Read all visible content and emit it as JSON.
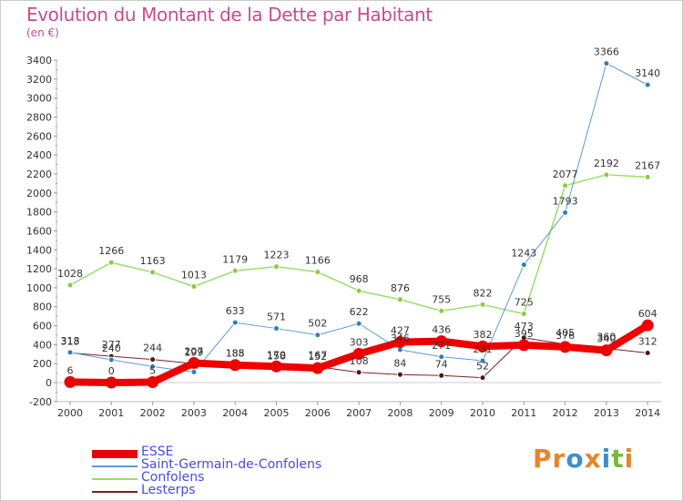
{
  "title": "Evolution du Montant de la Dette par Habitant",
  "subtitle": "(en €)",
  "brand": {
    "text": "Proxiti",
    "letters": [
      {
        "ch": "P",
        "color": "#e8842a"
      },
      {
        "ch": "r",
        "color": "#e8842a"
      },
      {
        "ch": "o",
        "color": "#3a8fd0"
      },
      {
        "ch": "x",
        "color": "#e8842a"
      },
      {
        "ch": "i",
        "color": "#3a8fd0"
      },
      {
        "ch": "t",
        "color": "#7ab83a"
      },
      {
        "ch": "i",
        "color": "#e8842a"
      }
    ]
  },
  "chart_data": {
    "type": "line",
    "title": "Evolution du Montant de la Dette par Habitant",
    "ylabel": "(en €)",
    "xlabel": "",
    "x": [
      "2000",
      "2001",
      "2002",
      "2003",
      "2004",
      "2005",
      "2006",
      "2007",
      "2008",
      "2009",
      "2010",
      "2011",
      "2012",
      "2013",
      "2014"
    ],
    "ylim": [
      -200,
      3400
    ],
    "yticks": [
      -200,
      0,
      200,
      400,
      600,
      800,
      1000,
      1200,
      1400,
      1600,
      1800,
      2000,
      2200,
      2400,
      2600,
      2800,
      3000,
      3200,
      3400
    ],
    "grid": false,
    "legend_position": "bottom-left",
    "series": [
      {
        "name": "ESSE",
        "color": "#ee0000",
        "values": [
          6,
          0,
          5,
          207,
          185,
          170,
          152,
          303,
          427,
          436,
          382,
          395,
          376,
          340,
          604
        ]
      },
      {
        "name": "Saint-Germain-de-Confolens",
        "color": "#5b9bd5",
        "values": [
          318,
          240,
          169,
          111,
          633,
          571,
          502,
          622,
          346,
          271,
          231,
          1243,
          1793,
          3366,
          3140
        ]
      },
      {
        "name": "Confolens",
        "color": "#99dd66",
        "values": [
          1028,
          1266,
          1163,
          1013,
          1179,
          1223,
          1166,
          968,
          876,
          755,
          822,
          725,
          2077,
          2192,
          2167
        ]
      },
      {
        "name": "Lesterps",
        "color": "#772222",
        "values": [
          313,
          277,
          244,
          199,
          188,
          158,
          167,
          108,
          84,
          74,
          52,
          473,
          405,
          360,
          312
        ]
      }
    ],
    "data_labels": {
      "ESSE": [
        "6",
        "0",
        "5",
        "207",
        "185",
        "170",
        "152",
        "303",
        "427",
        "436",
        "382",
        "395",
        "376",
        "340",
        "604"
      ],
      "Saint-Germain-de-Confolens": [
        "318",
        "240",
        "",
        "",
        "633",
        "571",
        "502",
        "622",
        "346",
        "271",
        "231",
        "1243",
        "1793",
        "3366",
        "3140"
      ],
      "Confolens": [
        "1028",
        "1266",
        "1163",
        "1013",
        "1179",
        "1223",
        "1166",
        "968",
        "876",
        "755",
        "822",
        "725",
        "2077",
        "2192",
        "2167"
      ],
      "Lesterps": [
        "313",
        "277",
        "244",
        "199",
        "188",
        "158",
        "167",
        "108",
        "84",
        "74",
        "52",
        "473",
        "405",
        "360",
        "312"
      ]
    }
  }
}
